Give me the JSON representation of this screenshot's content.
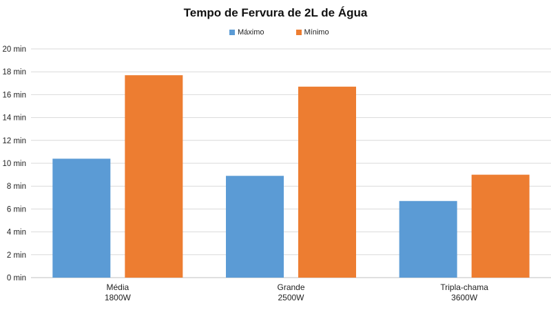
{
  "chart_data": {
    "type": "bar",
    "title": "Tempo de Fervura de 2L de Água",
    "categories": [
      {
        "line1": "Média",
        "line2": "1800W"
      },
      {
        "line1": "Grande",
        "line2": "2500W"
      },
      {
        "line1": "Tripla-chama",
        "line2": "3600W"
      }
    ],
    "series": [
      {
        "name": "Máximo",
        "color": "#5b9bd5",
        "values": [
          10.4,
          8.9,
          6.7
        ]
      },
      {
        "name": "Mínimo",
        "color": "#ed7d31",
        "values": [
          17.7,
          16.7,
          9.0
        ]
      }
    ],
    "y_ticks": [
      "0 min",
      "2 min",
      "4 min",
      "6 min",
      "8 min",
      "10 min",
      "12 min",
      "14 min",
      "16 min",
      "18 min",
      "20 min"
    ],
    "ylim": [
      0,
      20
    ],
    "grid": true,
    "legend_position": "top-center"
  }
}
